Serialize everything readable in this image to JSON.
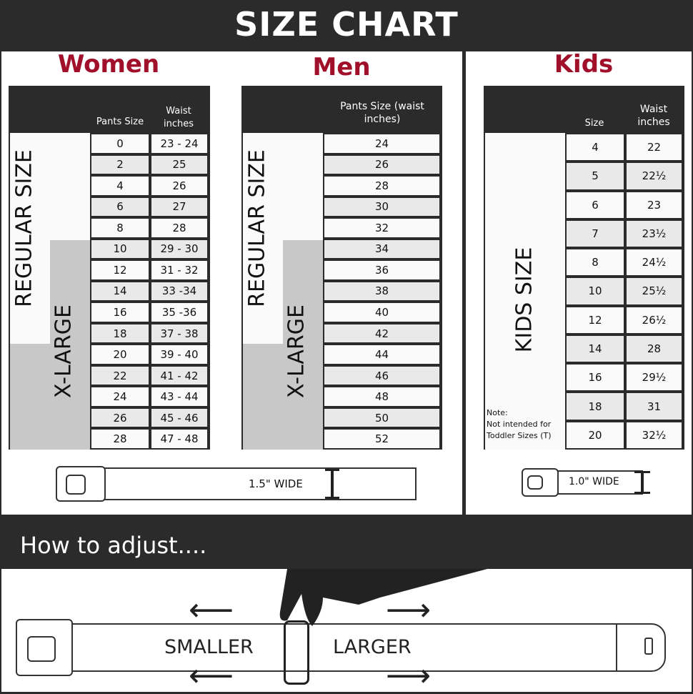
{
  "header": {
    "title": "SIZE CHART"
  },
  "women": {
    "title": "Women",
    "col_size": "Pants Size",
    "col_waist": "Waist inches",
    "regular_label": "REGULAR SIZE",
    "xlarge_label": "X-LARGE",
    "rows": [
      [
        "0",
        "23 - 24"
      ],
      [
        "2",
        "25"
      ],
      [
        "4",
        "26"
      ],
      [
        "6",
        "27"
      ],
      [
        "8",
        "28"
      ],
      [
        "10",
        "29 - 30"
      ],
      [
        "12",
        "31 - 32"
      ],
      [
        "14",
        "33 -34"
      ],
      [
        "16",
        "35 -36"
      ],
      [
        "18",
        "37 - 38"
      ],
      [
        "20",
        "39 - 40"
      ],
      [
        "22",
        "41 - 42"
      ],
      [
        "24",
        "43 - 44"
      ],
      [
        "26",
        "45 - 46"
      ],
      [
        "28",
        "47 - 48"
      ]
    ]
  },
  "men": {
    "title": "Men",
    "col_size": "Pants Size (waist inches)",
    "regular_label": "REGULAR SIZE",
    "xlarge_label": "X-LARGE",
    "rows": [
      "24",
      "26",
      "28",
      "30",
      "32",
      "34",
      "36",
      "38",
      "40",
      "42",
      "44",
      "46",
      "48",
      "50",
      "52"
    ]
  },
  "kids": {
    "title": "Kids",
    "col_size": "Size",
    "col_waist": "Waist inches",
    "kids_label": "KIDS SIZE",
    "note": "Note:",
    "note_text": "Not intended for Toddler Sizes (T)",
    "rows": [
      [
        "4",
        "22"
      ],
      [
        "5",
        "22½"
      ],
      [
        "6",
        "23"
      ],
      [
        "7",
        "23½"
      ],
      [
        "8",
        "24½"
      ],
      [
        "10",
        "25½"
      ],
      [
        "12",
        "26½"
      ],
      [
        "14",
        "28"
      ],
      [
        "16",
        "29½"
      ],
      [
        "18",
        "31"
      ],
      [
        "20",
        "32½"
      ]
    ]
  },
  "belt_adult": {
    "width_label": "1.5\" WIDE"
  },
  "belt_kids": {
    "width_label": "1.0\" WIDE"
  },
  "adjust": {
    "title": "How to adjust....",
    "smaller": "SMALLER",
    "larger": "LARGER"
  },
  "colors": {
    "accent": "#a0102a",
    "dark": "#2b2b2b"
  }
}
